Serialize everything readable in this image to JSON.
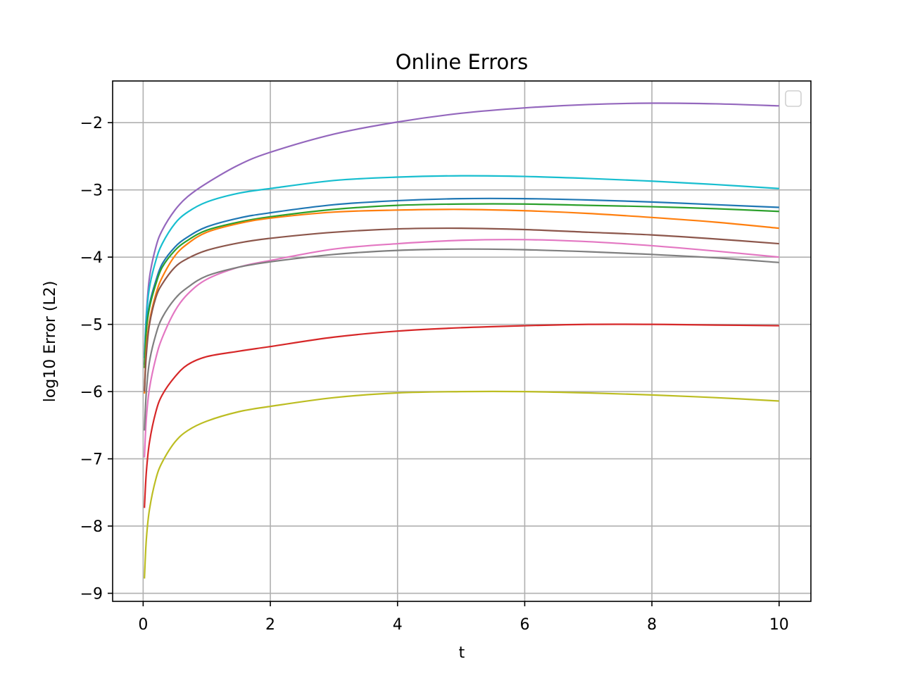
{
  "chart_data": {
    "type": "line",
    "title": "Online Errors",
    "xlabel": "t",
    "ylabel": "log10 Error (L2)",
    "xlim": [
      -0.48,
      10.5
    ],
    "ylim": [
      -9.12,
      -1.38
    ],
    "xticks": [
      0,
      2,
      4,
      6,
      8,
      10
    ],
    "yticks": [
      -9,
      -8,
      -7,
      -6,
      -5,
      -4,
      -3,
      -2
    ],
    "ytick_labels": [
      "−9",
      "−8",
      "−7",
      "−6",
      "−5",
      "−4",
      "−3",
      "−2"
    ],
    "grid": true,
    "legend": {
      "placement": "top-right",
      "entries": []
    },
    "series": [
      {
        "color": "#9467bd",
        "x": [
          0.02,
          0.05,
          0.1,
          0.2,
          0.3,
          0.5,
          0.7,
          1,
          1.5,
          2,
          3,
          4,
          5,
          6,
          7,
          8,
          9,
          10
        ],
        "y": [
          -5.45,
          -4.85,
          -4.3,
          -3.85,
          -3.6,
          -3.3,
          -3.1,
          -2.9,
          -2.63,
          -2.44,
          -2.17,
          -1.99,
          -1.86,
          -1.78,
          -1.73,
          -1.71,
          -1.72,
          -1.75
        ]
      },
      {
        "color": "#17becf",
        "x": [
          0.02,
          0.05,
          0.1,
          0.2,
          0.3,
          0.5,
          0.7,
          1,
          1.5,
          2,
          3,
          4,
          5,
          6,
          7,
          8,
          9,
          10
        ],
        "y": [
          -5.5,
          -4.9,
          -4.45,
          -4.05,
          -3.8,
          -3.5,
          -3.33,
          -3.18,
          -3.05,
          -2.98,
          -2.86,
          -2.81,
          -2.79,
          -2.8,
          -2.83,
          -2.87,
          -2.92,
          -2.98
        ]
      },
      {
        "color": "#1f77b4",
        "x": [
          0.02,
          0.05,
          0.1,
          0.2,
          0.3,
          0.5,
          0.7,
          1,
          1.5,
          2,
          3,
          4,
          5,
          6,
          7,
          8,
          9,
          10
        ],
        "y": [
          -5.6,
          -5.05,
          -4.7,
          -4.35,
          -4.1,
          -3.85,
          -3.7,
          -3.55,
          -3.42,
          -3.34,
          -3.22,
          -3.16,
          -3.13,
          -3.13,
          -3.15,
          -3.18,
          -3.22,
          -3.26
        ]
      },
      {
        "color": "#2ca02c",
        "x": [
          0.02,
          0.05,
          0.1,
          0.2,
          0.3,
          0.5,
          0.7,
          1,
          1.5,
          2,
          3,
          4,
          5,
          6,
          7,
          8,
          9,
          10
        ],
        "y": [
          -5.65,
          -5.1,
          -4.75,
          -4.4,
          -4.15,
          -3.9,
          -3.75,
          -3.6,
          -3.48,
          -3.4,
          -3.29,
          -3.23,
          -3.21,
          -3.21,
          -3.23,
          -3.25,
          -3.28,
          -3.32
        ]
      },
      {
        "color": "#ff7f0e",
        "x": [
          0.02,
          0.05,
          0.1,
          0.2,
          0.3,
          0.5,
          0.7,
          1,
          1.5,
          2,
          3,
          4,
          5,
          6,
          7,
          8,
          9,
          10
        ],
        "y": [
          -6.03,
          -5.35,
          -4.95,
          -4.55,
          -4.3,
          -3.98,
          -3.8,
          -3.63,
          -3.5,
          -3.42,
          -3.33,
          -3.3,
          -3.29,
          -3.31,
          -3.35,
          -3.41,
          -3.48,
          -3.57
        ]
      },
      {
        "color": "#8c564b",
        "x": [
          0.02,
          0.05,
          0.1,
          0.2,
          0.3,
          0.5,
          0.7,
          1,
          1.5,
          2,
          3,
          4,
          5,
          6,
          7,
          8,
          9,
          10
        ],
        "y": [
          -6.0,
          -5.45,
          -5.0,
          -4.6,
          -4.4,
          -4.15,
          -4.02,
          -3.9,
          -3.79,
          -3.72,
          -3.63,
          -3.58,
          -3.57,
          -3.59,
          -3.63,
          -3.67,
          -3.73,
          -3.8
        ]
      },
      {
        "color": "#e377c2",
        "x": [
          0.02,
          0.05,
          0.1,
          0.2,
          0.3,
          0.5,
          0.7,
          1,
          1.5,
          2,
          3,
          4,
          5,
          6,
          7,
          8,
          9,
          10
        ],
        "y": [
          -6.98,
          -6.4,
          -5.95,
          -5.5,
          -5.2,
          -4.8,
          -4.55,
          -4.33,
          -4.15,
          -4.05,
          -3.88,
          -3.8,
          -3.75,
          -3.74,
          -3.77,
          -3.83,
          -3.91,
          -4.0
        ]
      },
      {
        "color": "#7f7f7f",
        "x": [
          0.02,
          0.05,
          0.1,
          0.2,
          0.3,
          0.5,
          0.7,
          1,
          1.5,
          2,
          3,
          4,
          5,
          6,
          7,
          8,
          9,
          10
        ],
        "y": [
          -6.58,
          -6.0,
          -5.55,
          -5.15,
          -4.9,
          -4.62,
          -4.45,
          -4.28,
          -4.15,
          -4.07,
          -3.96,
          -3.9,
          -3.88,
          -3.89,
          -3.92,
          -3.96,
          -4.01,
          -4.08
        ]
      },
      {
        "color": "#d62728",
        "x": [
          0.02,
          0.05,
          0.1,
          0.2,
          0.3,
          0.5,
          0.7,
          1,
          1.5,
          2,
          3,
          4,
          5,
          6,
          7,
          8,
          9,
          10
        ],
        "y": [
          -7.73,
          -7.2,
          -6.75,
          -6.3,
          -6.05,
          -5.78,
          -5.6,
          -5.48,
          -5.4,
          -5.33,
          -5.19,
          -5.1,
          -5.05,
          -5.02,
          -5.0,
          -5.0,
          -5.01,
          -5.02
        ]
      },
      {
        "color": "#bcbd22",
        "x": [
          0.02,
          0.05,
          0.1,
          0.2,
          0.3,
          0.5,
          0.7,
          1,
          1.5,
          2,
          3,
          4,
          5,
          6,
          7,
          8,
          9,
          10
        ],
        "y": [
          -8.78,
          -8.2,
          -7.75,
          -7.3,
          -7.05,
          -6.75,
          -6.58,
          -6.44,
          -6.3,
          -6.22,
          -6.09,
          -6.02,
          -6.0,
          -6.0,
          -6.02,
          -6.05,
          -6.09,
          -6.14
        ]
      }
    ]
  }
}
